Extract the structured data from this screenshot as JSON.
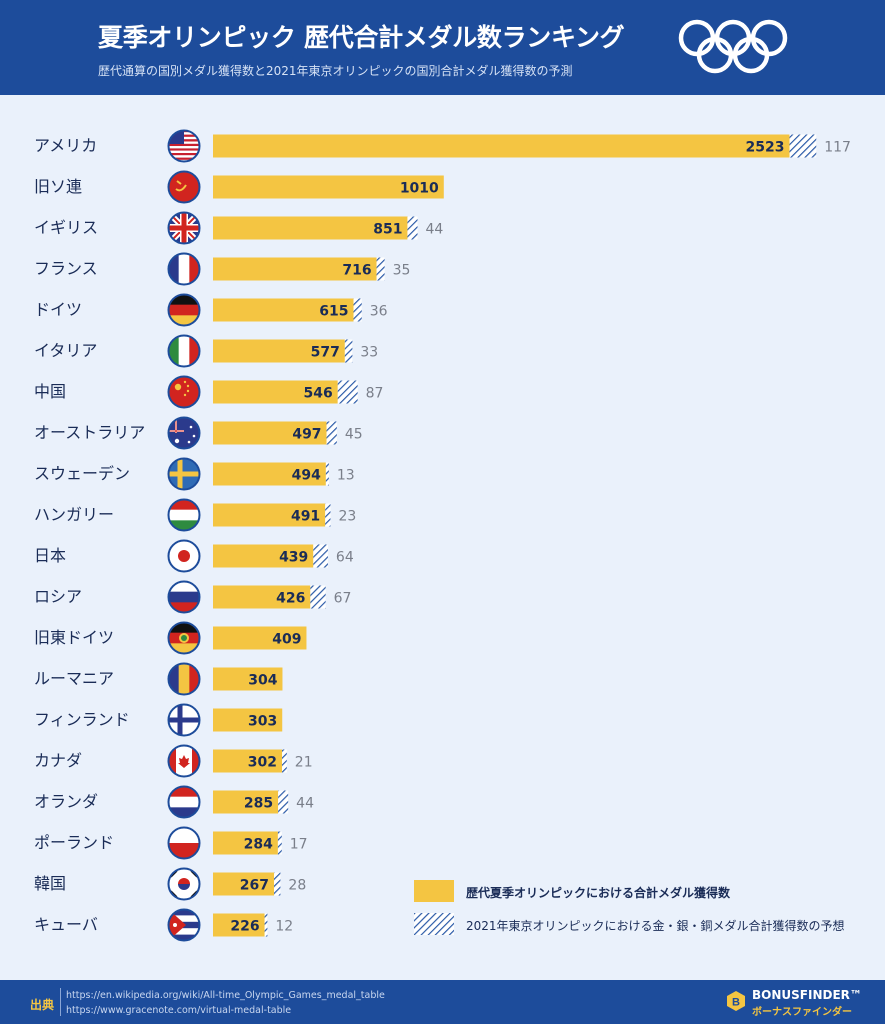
{
  "header": {
    "title": "夏季オリンピック 歴代合計メダル数ランキング",
    "subtitle": "歴代通算の国別メダル獲得数と2021年東京オリンピックの国別合計メダル獲得数の予測"
  },
  "colors": {
    "header_bg": "#1d4c9b",
    "bar_historic": "#f4c542",
    "bar_forecast_hatch": "#2a5aa8",
    "value_text": "#1a2c57",
    "forecast_text": "#7a7f8a",
    "page_bg": "#eaf1fb"
  },
  "chart_data": {
    "type": "bar",
    "orientation": "horizontal",
    "categories": [
      "アメリカ",
      "旧ソ連",
      "イギリス",
      "フランス",
      "ドイツ",
      "イタリア",
      "中国",
      "オーストラリア",
      "スウェーデン",
      "ハンガリー",
      "日本",
      "ロシア",
      "旧東ドイツ",
      "ルーマニア",
      "フィンランド",
      "カナダ",
      "オランダ",
      "ポーランド",
      "韓国",
      "キューバ"
    ],
    "flags": [
      "flag-usa-icon",
      "flag-ussr-icon",
      "flag-uk-icon",
      "flag-france-icon",
      "flag-germany-icon",
      "flag-italy-icon",
      "flag-china-icon",
      "flag-australia-icon",
      "flag-sweden-icon",
      "flag-hungary-icon",
      "flag-japan-icon",
      "flag-russia-icon",
      "flag-east-germany-icon",
      "flag-romania-icon",
      "flag-finland-icon",
      "flag-canada-icon",
      "flag-netherlands-icon",
      "flag-poland-icon",
      "flag-korea-icon",
      "flag-cuba-icon"
    ],
    "series": [
      {
        "name": "歴代夏季オリンピックにおける合計メダル獲得数",
        "values": [
          2523,
          1010,
          851,
          716,
          615,
          577,
          546,
          497,
          494,
          491,
          439,
          426,
          409,
          304,
          303,
          302,
          285,
          284,
          267,
          226
        ]
      },
      {
        "name": "2021年東京オリンピックにおける金・銀・銅メダル合計獲得数の予想",
        "values": [
          117,
          null,
          44,
          35,
          36,
          33,
          87,
          45,
          13,
          23,
          64,
          67,
          null,
          null,
          null,
          21,
          44,
          17,
          28,
          12
        ]
      }
    ],
    "stacked": true,
    "legend_position": "bottom-right",
    "grid": false
  },
  "sources": {
    "label": "出典",
    "links": [
      "https://en.wikipedia.org/wiki/All-time_Olympic_Games_medal_table",
      "https://www.gracenote.com/virtual-medal-table"
    ]
  },
  "brand": {
    "name": "BONUSFINDER™",
    "sub": "ボーナスファインダー"
  }
}
